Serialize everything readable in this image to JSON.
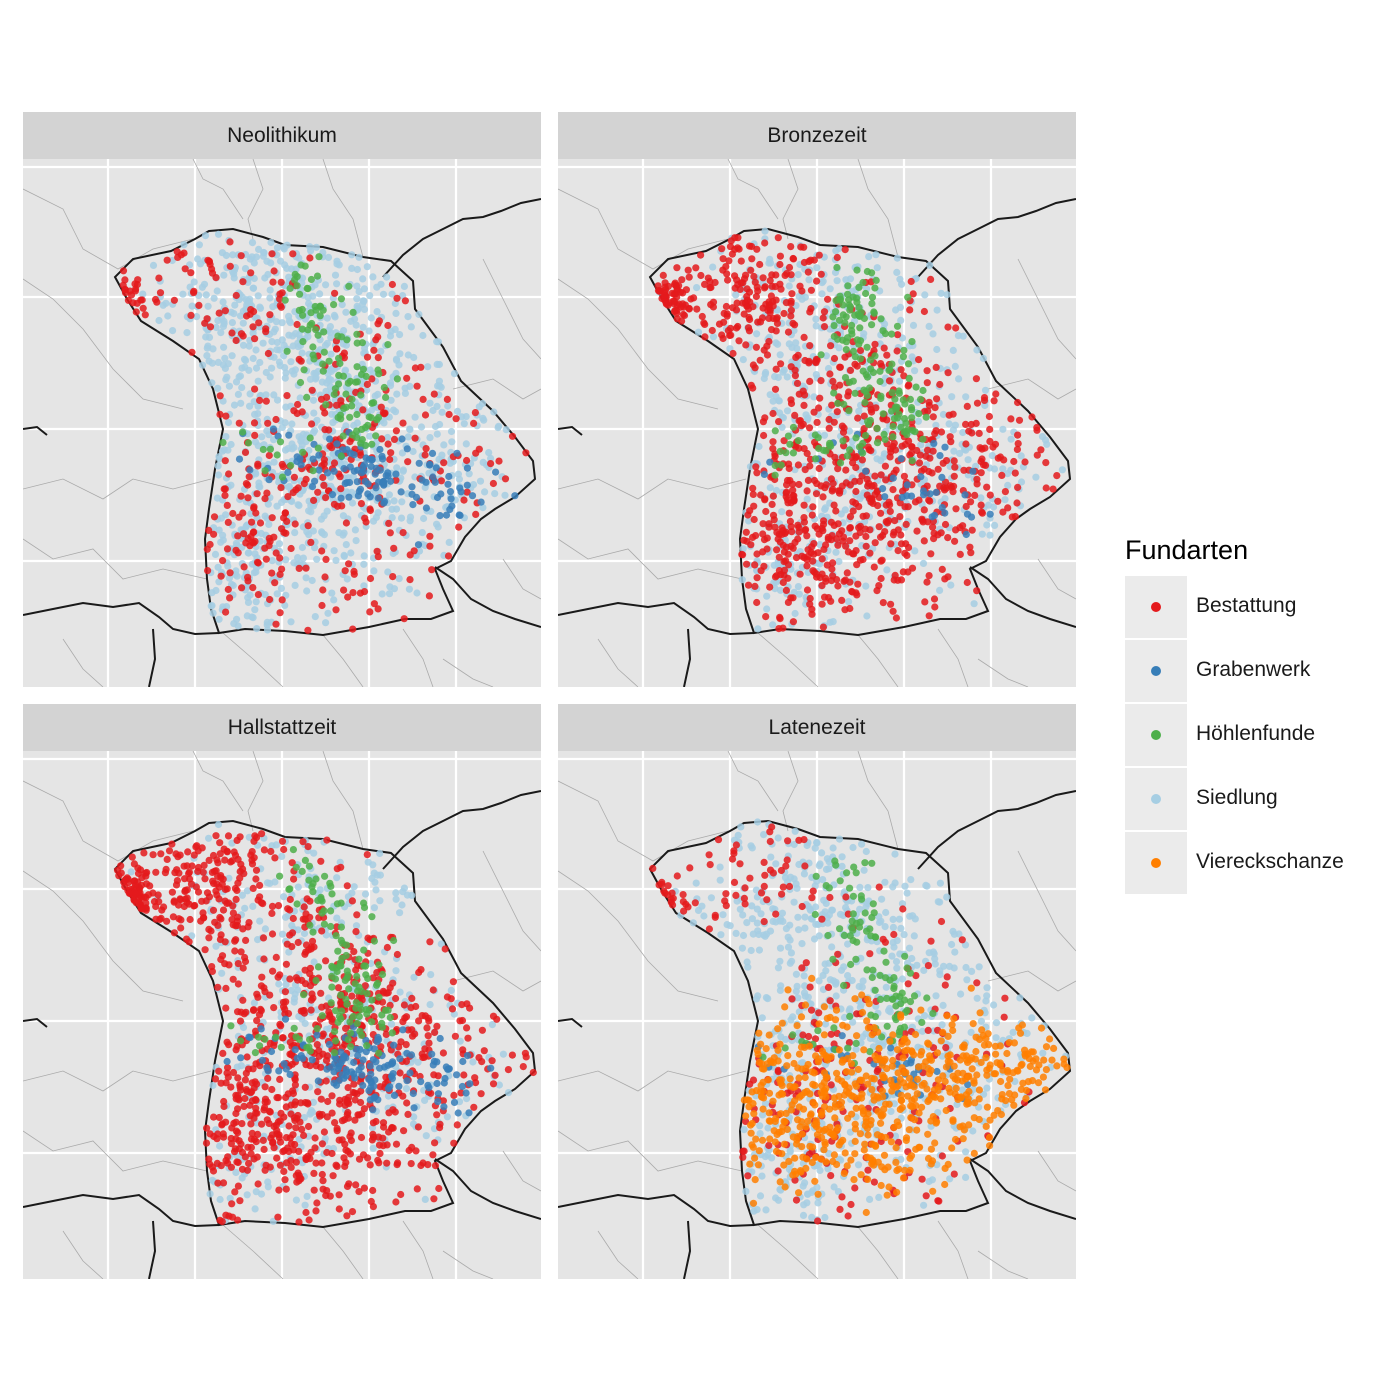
{
  "legend": {
    "title": "Fundarten",
    "items": [
      {
        "label": "Bestattung",
        "color": "#e41a1c"
      },
      {
        "label": "Grabenwerk",
        "color": "#377eb8"
      },
      {
        "label": "Höhlenfunde",
        "color": "#4daf4a"
      },
      {
        "label": "Siedlung",
        "color": "#a6cee3"
      },
      {
        "label": "Viereckschanze",
        "color": "#ff7f00"
      }
    ]
  },
  "panels": [
    {
      "title": "Neolithikum",
      "mix": {
        "Siedlung": 0.62,
        "Bestattung": 0.24,
        "Höhlenfunde": 0.07,
        "Grabenwerk": 0.07,
        "Viereckschanze": 0
      }
    },
    {
      "title": "Bronzezeit",
      "mix": {
        "Siedlung": 0.32,
        "Bestattung": 0.56,
        "Höhlenfunde": 0.1,
        "Grabenwerk": 0.02,
        "Viereckschanze": 0
      }
    },
    {
      "title": "Hallstattzeit",
      "mix": {
        "Siedlung": 0.22,
        "Bestattung": 0.62,
        "Höhlenfunde": 0.08,
        "Grabenwerk": 0.08,
        "Viereckschanze": 0
      }
    },
    {
      "title": "Latenezeit",
      "mix": {
        "Siedlung": 0.4,
        "Bestattung": 0.16,
        "Höhlenfunde": 0.06,
        "Grabenwerk": 0.02,
        "Viereckschanze": 0.36
      }
    }
  ],
  "colors": {
    "panel_background": "#e5e5e5",
    "grid": "#ffffff",
    "strip": "#d3d3d3",
    "border_major": "#1a1a1a",
    "border_minor": "#aaaaaa"
  }
}
